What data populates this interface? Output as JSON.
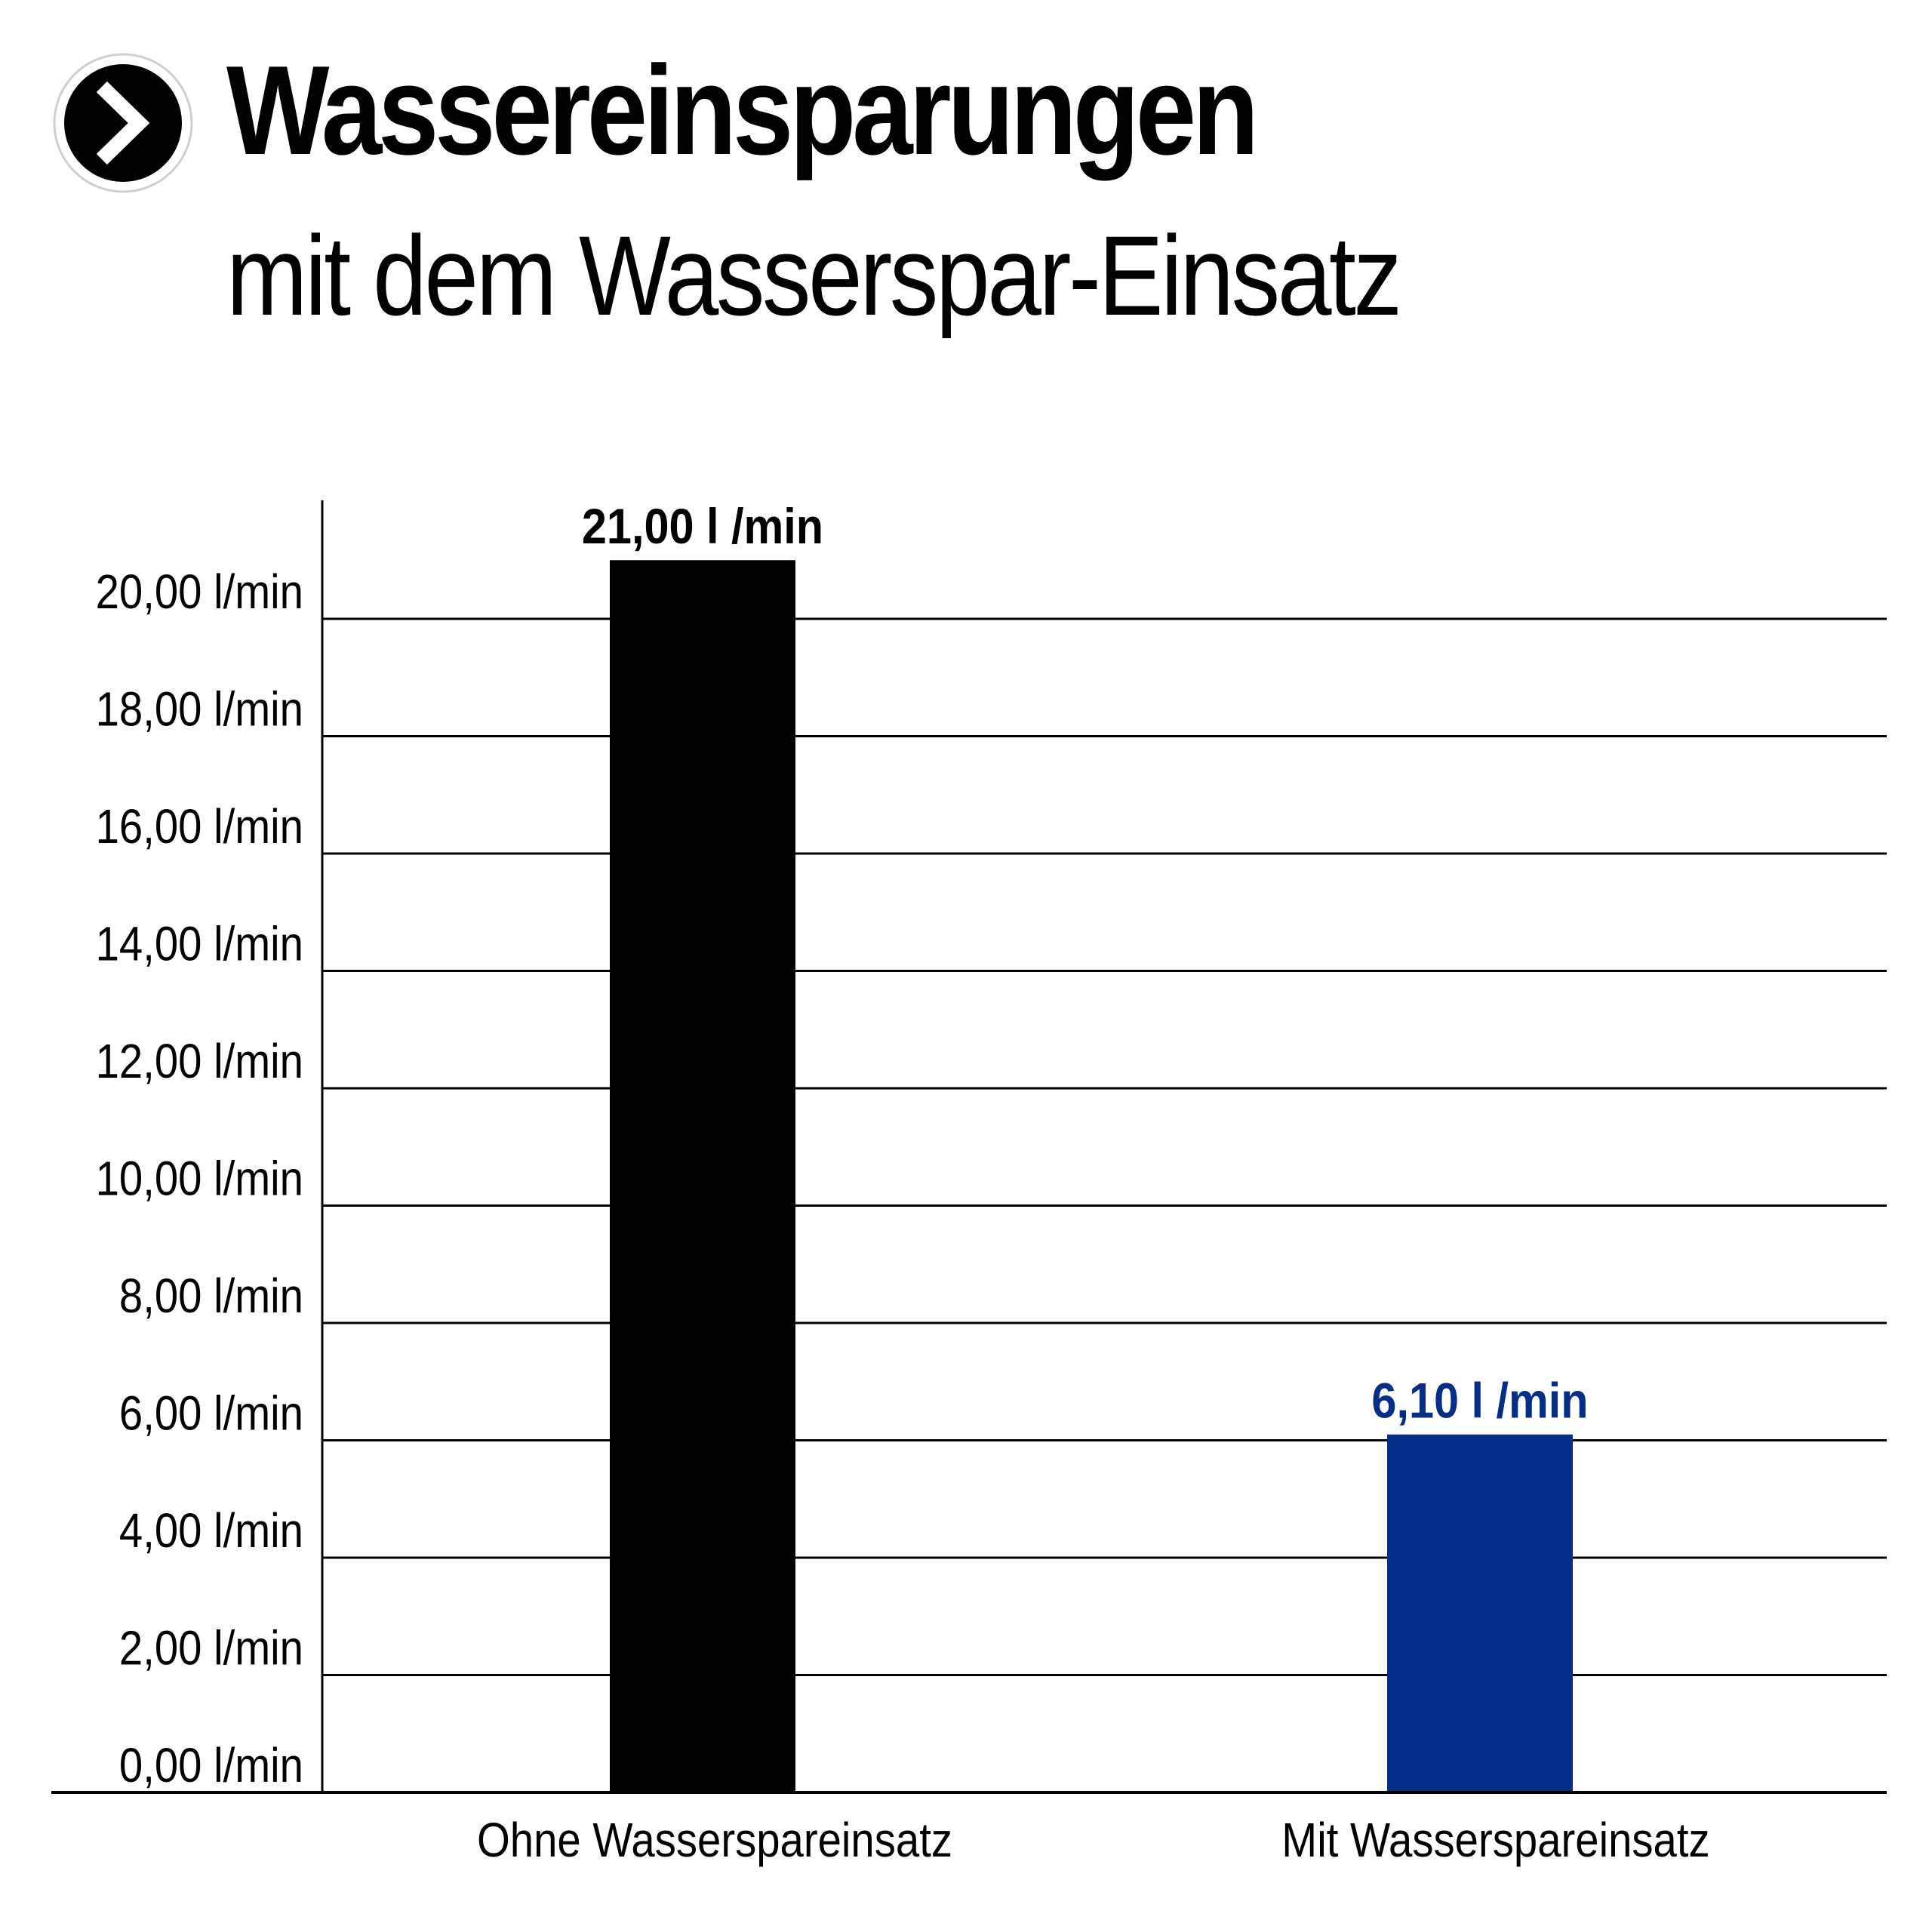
{
  "header": {
    "icon": "chevron-right-circle-icon",
    "title": "Wassereinsparungen",
    "subtitle": "mit dem Wasserspar-Einsatz"
  },
  "chart_data": {
    "type": "bar",
    "categories": [
      "Ohne Wasserspareinsatz",
      "Mit Wasserspareinsatz"
    ],
    "values": [
      21.0,
      6.1
    ],
    "data_labels": [
      "21,00 l /min",
      "6,10 l /min"
    ],
    "bar_colors": [
      "#000000",
      "#062e87"
    ],
    "yticks": [
      0,
      2,
      4,
      6,
      8,
      10,
      12,
      14,
      16,
      18,
      20
    ],
    "ytick_labels": [
      "0,00 l/min",
      "2,00 l/min",
      "4,00 l/min",
      "6,00 l/min",
      "8,00 l/min",
      "10,00 l/min",
      "12,00 l/min",
      "14,00 l/min",
      "16,00 l/min",
      "18,00 l/min",
      "20,00 l/min"
    ],
    "ylim": [
      0,
      22
    ],
    "grid": true,
    "legend": "none"
  }
}
